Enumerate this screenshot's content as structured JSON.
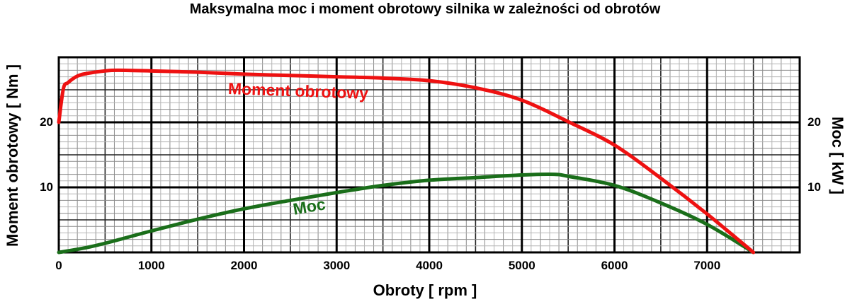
{
  "chart_data": {
    "type": "line",
    "title": "Maksymalna moc i moment obrotowy silnika w zależności od obrotów",
    "xlabel": "Obroty [ rpm ]",
    "ylabel": "Moment obrotowy [ Nm ]",
    "ylabel_right": "Moc [ kW ]",
    "xlim": [
      0,
      8000
    ],
    "ylim": [
      0,
      30
    ],
    "x_ticks": [
      0,
      1000,
      2000,
      3000,
      4000,
      5000,
      6000,
      7000
    ],
    "x_tick_labels": [
      "0",
      "1000",
      "2000",
      "3000",
      "4000",
      "5000",
      "6000",
      "7000"
    ],
    "y_ticks": [
      10,
      20
    ],
    "y_tick_labels": [
      "10",
      "20"
    ],
    "y_ticks_right": [
      10,
      20
    ],
    "y_tick_labels_right": [
      "10",
      "20"
    ],
    "grid": true,
    "legend_position": "inline labels",
    "series": [
      {
        "name": "Moment obrotowy",
        "axis": "left",
        "color": "#ee1111",
        "x": [
          0,
          50,
          100,
          200,
          300,
          500,
          640,
          1000,
          1500,
          2000,
          2500,
          3000,
          3500,
          4000,
          4500,
          5000,
          5500,
          6000,
          6500,
          7000,
          7500
        ],
        "y": [
          20.0,
          25.2,
          26.1,
          27.1,
          27.5,
          27.9,
          28.0,
          27.9,
          27.7,
          27.4,
          27.2,
          27.0,
          26.8,
          26.4,
          25.3,
          23.4,
          20.1,
          16.5,
          11.4,
          5.9,
          0.0
        ]
      },
      {
        "name": "Moc",
        "axis": "right",
        "color": "#1a6e1a",
        "x": [
          0,
          250,
          500,
          1000,
          1500,
          2000,
          2500,
          3000,
          3500,
          4000,
          4500,
          5000,
          5350,
          5500,
          6000,
          6500,
          7000,
          7500
        ],
        "y": [
          0.0,
          0.6,
          1.4,
          3.3,
          5.1,
          6.7,
          8.0,
          9.2,
          10.3,
          11.1,
          11.5,
          11.9,
          12.0,
          11.7,
          10.3,
          7.6,
          4.3,
          0.0
        ]
      }
    ],
    "annotations": [
      {
        "text": "Moment obrotowy",
        "x": 3400,
        "y": 25.0,
        "color": "#ee1111"
      },
      {
        "text": "Moc",
        "x": 2750,
        "y": 6.5,
        "color": "#1a6e1a"
      }
    ]
  },
  "labels": {
    "title": "Maksymalna moc i moment obrotowy silnika w zależności od obrotów",
    "xlabel": "Obroty [ rpm ]",
    "ylabel_left": "Moment obrotowy [ Nm ]",
    "ylabel_right": "Moc [ kW ]",
    "torque_series": "Moment obrotowy",
    "power_series": "Moc"
  }
}
